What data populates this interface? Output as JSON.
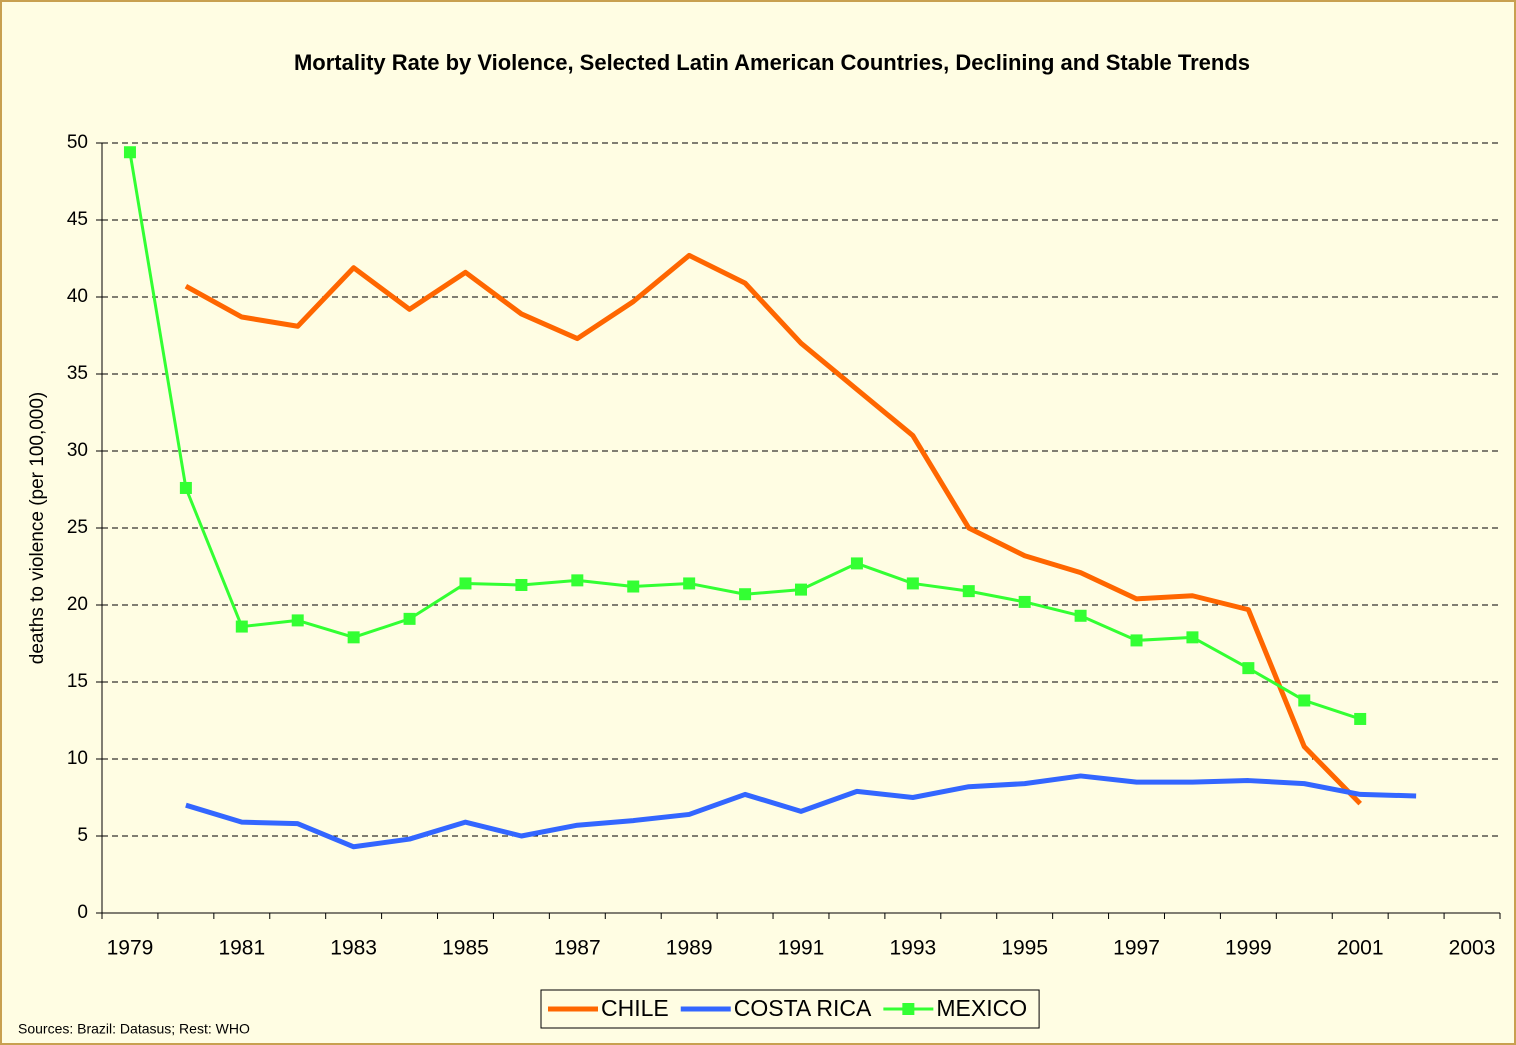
{
  "chart_data": {
    "type": "line",
    "title": "Mortality Rate by Violence, Selected Latin American Countries, Declining and Stable Trends",
    "ylabel": "deaths to violence (per 100,000)",
    "source": "Sources: Brazil: Datasus; Rest: WHO",
    "categories": [
      "1979",
      null,
      "1981",
      null,
      "1983",
      null,
      "1985",
      null,
      "1987",
      null,
      "1989",
      null,
      "1991",
      null,
      "1993",
      null,
      "1995",
      null,
      "1997",
      null,
      "1999",
      null,
      "2001",
      null,
      "2003"
    ],
    "series": [
      {
        "name": "CHILE",
        "color": "#ff6600",
        "marker": false,
        "values": [
          null,
          40.7,
          38.7,
          38.1,
          41.9,
          39.2,
          41.6,
          38.9,
          37.3,
          39.7,
          42.7,
          40.9,
          37.0,
          34.0,
          31.0,
          25.0,
          23.2,
          22.1,
          20.4,
          20.6,
          19.7,
          10.8,
          7.1,
          null,
          null
        ]
      },
      {
        "name": "COSTA RICA",
        "color": "#3366ff",
        "marker": false,
        "values": [
          null,
          7.0,
          5.9,
          5.8,
          4.3,
          4.8,
          5.9,
          5.0,
          5.7,
          6.0,
          6.4,
          7.7,
          6.6,
          7.9,
          7.5,
          8.2,
          8.4,
          8.9,
          8.5,
          8.5,
          8.6,
          8.4,
          7.7,
          7.6,
          null
        ]
      },
      {
        "name": "MEXICO",
        "color": "#33ff33",
        "marker": true,
        "values": [
          49.4,
          27.6,
          18.6,
          19.0,
          17.9,
          19.1,
          21.4,
          21.3,
          21.6,
          21.2,
          21.4,
          20.7,
          21.0,
          22.7,
          21.4,
          20.9,
          20.2,
          19.3,
          17.7,
          17.9,
          15.9,
          13.8,
          12.6,
          null,
          null
        ]
      }
    ],
    "ylim": [
      0,
      50
    ],
    "yticks": [
      0,
      5,
      10,
      15,
      20,
      25,
      30,
      35,
      40,
      45,
      50
    ],
    "grid": true,
    "legend": "bottom"
  }
}
